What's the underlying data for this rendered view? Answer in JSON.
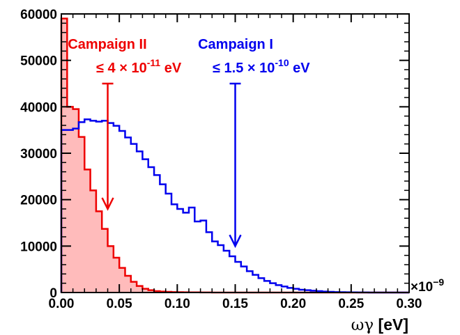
{
  "chart_data": {
    "type": "histogram",
    "x_axis": {
      "label_symbol": "ωγ",
      "label_unit": "[eV]",
      "multiplier": "×10",
      "multiplier_exp": "−9",
      "range": [
        0,
        0.3
      ],
      "ticks": [
        {
          "v": 0.0,
          "label": "0.00"
        },
        {
          "v": 0.05,
          "label": "0.05"
        },
        {
          "v": 0.1,
          "label": "0.10"
        },
        {
          "v": 0.15,
          "label": "0.15"
        },
        {
          "v": 0.2,
          "label": "0.20"
        },
        {
          "v": 0.25,
          "label": "0.25"
        },
        {
          "v": 0.3,
          "label": "0.30"
        }
      ]
    },
    "y_axis": {
      "range": [
        0,
        60000
      ],
      "ticks": [
        {
          "v": 0,
          "label": "0"
        },
        {
          "v": 10000,
          "label": "10000"
        },
        {
          "v": 20000,
          "label": "20000"
        },
        {
          "v": 30000,
          "label": "30000"
        },
        {
          "v": 40000,
          "label": "40000"
        },
        {
          "v": 50000,
          "label": "50000"
        },
        {
          "v": 60000,
          "label": "60000"
        }
      ]
    },
    "series": [
      {
        "name": "Campaign I",
        "color": "#0000ee",
        "fill": "none",
        "bin_width": 0.005,
        "values": [
          35000,
          35000,
          35300,
          36700,
          37300,
          37000,
          36800,
          37000,
          36500,
          35900,
          34800,
          33400,
          32000,
          30400,
          28700,
          27000,
          25300,
          23300,
          21300,
          19000,
          18000,
          17200,
          18300,
          15300,
          15500,
          13000,
          11000,
          10200,
          9000,
          7800,
          6600,
          5600,
          4600,
          3800,
          3100,
          2500,
          2000,
          1600,
          1300,
          1000,
          800,
          600,
          500,
          400,
          300,
          200,
          150,
          100,
          70,
          50,
          30,
          20,
          10,
          5,
          0,
          0,
          0,
          0,
          0,
          0
        ]
      },
      {
        "name": "Campaign II",
        "color": "#ee0000",
        "fill": "#ffbbbb",
        "bin_width": 0.005,
        "values": [
          59000,
          40000,
          39500,
          33500,
          26500,
          22000,
          17500,
          13700,
          10000,
          7500,
          5300,
          3600,
          2300,
          1400,
          800,
          500,
          300,
          200,
          150,
          100,
          80,
          60,
          40,
          30,
          20,
          10,
          5,
          0,
          0,
          0,
          0,
          0,
          0,
          0,
          0,
          0,
          0,
          0,
          0,
          0,
          0,
          0,
          0,
          0,
          0,
          0,
          0,
          0,
          0,
          0,
          0,
          0,
          0,
          0,
          0,
          0,
          0,
          0,
          0,
          0
        ]
      }
    ],
    "annotations": [
      {
        "title": "Campaign II",
        "limit_prefix": "≤ 4 × 10",
        "limit_exp": "-11",
        "limit_suffix": " eV",
        "color": "#ee0000",
        "arrow_x": 0.04,
        "arrow_from": 45000,
        "arrow_to": 18000
      },
      {
        "title": "Campaign I",
        "limit_prefix": "≤ 1.5 × 10",
        "limit_exp": "-10",
        "limit_suffix": " eV",
        "color": "#0000ee",
        "arrow_x": 0.15,
        "arrow_from": 45000,
        "arrow_to": 10000
      }
    ]
  }
}
